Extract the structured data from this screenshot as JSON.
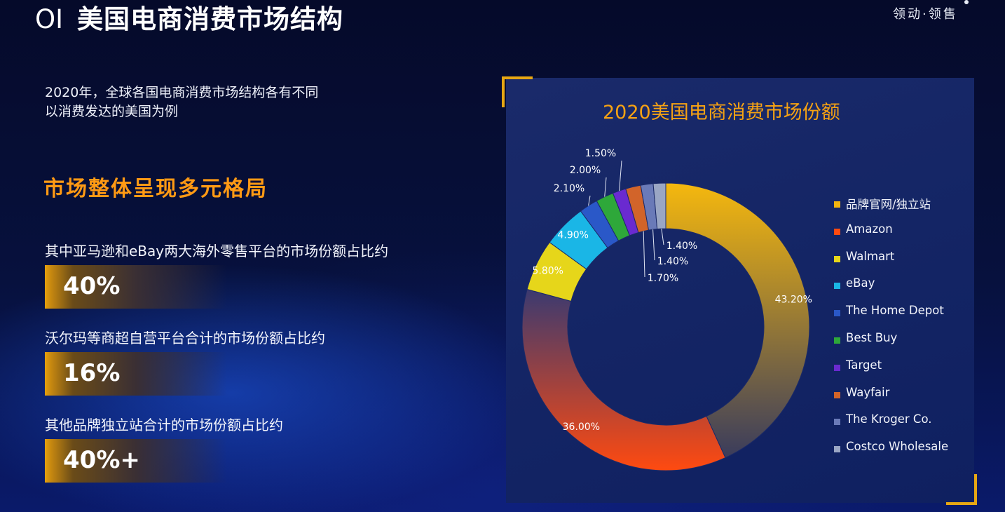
{
  "header": {
    "number": "OI",
    "title": "美国电商消费市场结构",
    "brand": "领动·领售"
  },
  "intro": {
    "line1": "2020年，全球各国电商消费市场结构各有不同",
    "line2": "以消费发达的美国为例"
  },
  "subhead": "市场整体呈现多元格局",
  "stats": [
    {
      "label": "其中亚马逊和eBay两大海外零售平台的市场份额占比约",
      "value": "40%"
    },
    {
      "label": "沃尔玛等商超自营平台合计的市场份额占比约",
      "value": "16%"
    },
    {
      "label": "其他品牌独立站合计的市场份额占比约",
      "value": "40%+"
    }
  ],
  "chart_data": {
    "type": "pie",
    "donut": true,
    "title": "2020美国电商消费市场份额",
    "categories": [
      "品牌官网/独立站",
      "Amazon",
      "Walmart",
      "eBay",
      "The Home Depot",
      "Best Buy",
      "Target",
      "Wayfair",
      "The Kroger Co.",
      "Costco Wholesale"
    ],
    "values": [
      43.2,
      36.0,
      5.8,
      4.9,
      2.1,
      2.0,
      1.5,
      1.7,
      1.4,
      1.4
    ],
    "labels": [
      "43.20%",
      "36.00%",
      "5.80%",
      "4.90%",
      "2.10%",
      "2.00%",
      "1.50%",
      "1.70%",
      "1.40%",
      "1.40%"
    ],
    "colors": [
      "#f2b40f",
      "#ff4a10",
      "#e6d61a",
      "#1ab6e6",
      "#2a58c8",
      "#2ea83a",
      "#6a2ad0",
      "#d2642a",
      "#6a7ab8",
      "#9aa6c4"
    ],
    "legend_position": "right"
  }
}
